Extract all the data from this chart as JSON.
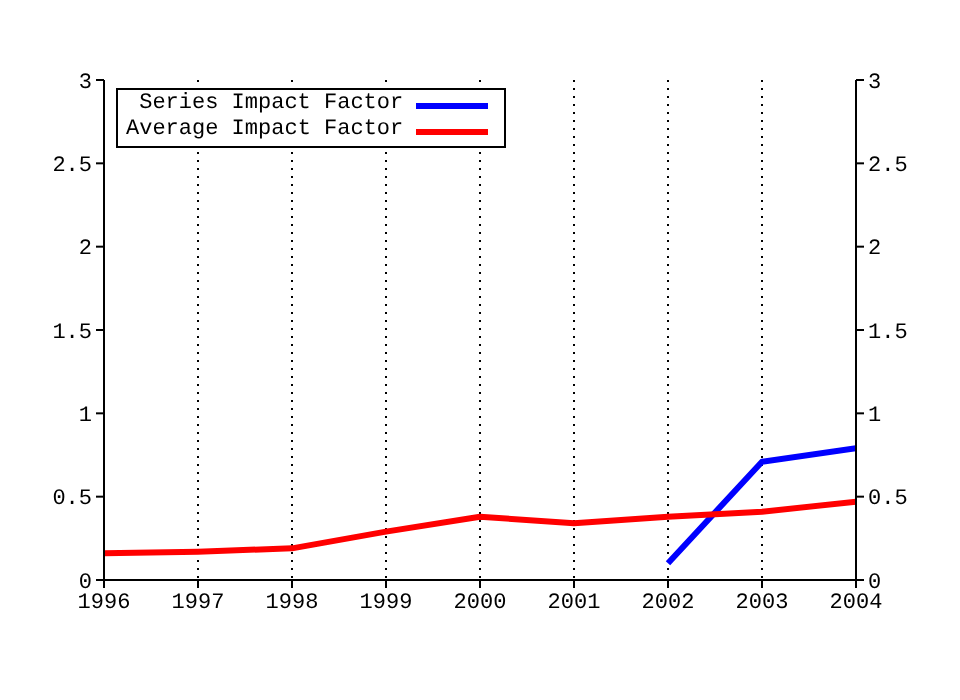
{
  "chart_data": {
    "type": "line",
    "x": [
      1996,
      1997,
      1998,
      1999,
      2000,
      2001,
      2002,
      2003,
      2004
    ],
    "series": [
      {
        "name": "Series Impact Factor",
        "color": "#0000ff",
        "values": [
          null,
          null,
          null,
          null,
          null,
          null,
          0.1,
          0.71,
          0.79
        ]
      },
      {
        "name": "Average Impact Factor",
        "color": "#ff0000",
        "values": [
          0.16,
          0.17,
          0.19,
          0.29,
          0.38,
          0.34,
          0.38,
          0.41,
          0.47
        ]
      }
    ],
    "xlim": [
      1996,
      2004
    ],
    "xticks": [
      1996,
      1997,
      1998,
      1999,
      2000,
      2001,
      2002,
      2003,
      2004
    ],
    "ylim": [
      0,
      3
    ],
    "yticks": [
      0,
      0.5,
      1,
      1.5,
      2,
      2.5,
      3
    ],
    "y2lim": [
      0,
      3
    ],
    "y2ticks": [
      0,
      0.5,
      1,
      1.5,
      2,
      2.5,
      3
    ],
    "grid": true,
    "legend": "top left",
    "marker": "none",
    "line_style": "solid"
  }
}
